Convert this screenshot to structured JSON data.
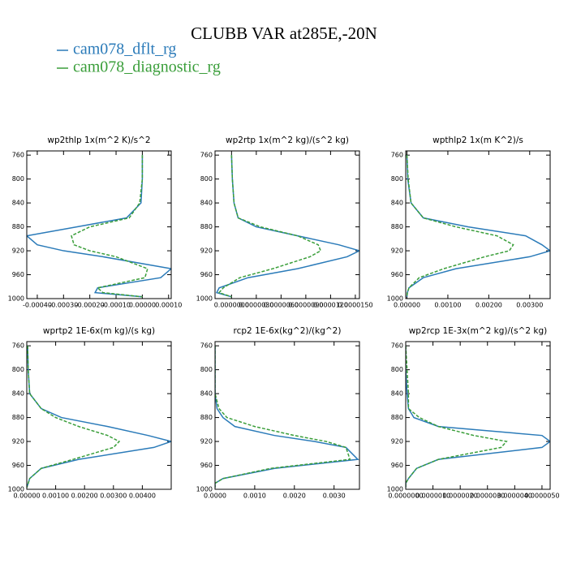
{
  "title": "CLUBB VAR at285E,-20N",
  "chart_data": [
    {
      "type": "line",
      "title": "wp2thlp  1x(m^2 K)/s^2",
      "y": [
        760,
        800,
        840,
        865,
        880,
        895,
        910,
        920,
        930,
        950,
        965,
        982,
        990,
        997
      ],
      "ylim": [
        1000,
        753
      ],
      "yticks": [
        760,
        800,
        840,
        880,
        920,
        960,
        1000
      ],
      "xlim": [
        -0.00044,
        0.00011
      ],
      "xticks": [
        {
          "value": -0.0004,
          "label": "-0.00040"
        },
        {
          "value": -0.0003,
          "label": "-0.00030"
        },
        {
          "value": -0.0002,
          "label": "-0.00020"
        },
        {
          "value": -0.0001,
          "label": "-0.00010"
        },
        {
          "value": 0,
          "label": "0.00000"
        },
        {
          "value": 0.0001,
          "label": "0.00010"
        }
      ],
      "series": [
        {
          "name": "cam078_dflt_rg",
          "color": "#2b7bb9",
          "dashed": false,
          "values": [
            0,
            0,
            -5e-06,
            -6e-05,
            -0.00025,
            -0.00044,
            -0.0004,
            -0.0003,
            -0.00015,
            0.00011,
            7e-05,
            -0.00017,
            -0.00018,
            0
          ]
        },
        {
          "name": "cam078_diagnostic_rg",
          "color": "#3a9e3a",
          "dashed": true,
          "values": [
            0,
            0,
            -1e-05,
            -5e-05,
            -0.0002,
            -0.00027,
            -0.00026,
            -0.0002,
            -0.0001,
            2e-05,
            1e-05,
            -0.00017,
            -0.00015,
            0
          ]
        }
      ]
    },
    {
      "type": "line",
      "title": "wp2rtp  1x(m^2 kg)/(s^2 kg)",
      "y": [
        760,
        800,
        840,
        865,
        880,
        895,
        910,
        920,
        930,
        950,
        965,
        982,
        990,
        997
      ],
      "ylim": [
        1000,
        753
      ],
      "yticks": [
        760,
        800,
        840,
        880,
        920,
        960,
        1000
      ],
      "xlim": [
        -2e-06,
        1.55e-05
      ],
      "xticks": [
        {
          "value": 0,
          "label": "0.0000000"
        },
        {
          "value": 3e-06,
          "label": "0.0000030"
        },
        {
          "value": 6e-06,
          "label": "0.0000060"
        },
        {
          "value": 9e-06,
          "label": "0.0000090"
        },
        {
          "value": 1.2e-05,
          "label": "0.0000120"
        },
        {
          "value": 1.5e-05,
          "label": "0.0000150"
        }
      ],
      "series": [
        {
          "color": "#2b7bb9",
          "dashed": false,
          "values": [
            0,
            1e-07,
            3e-07,
            8e-07,
            3e-06,
            8e-06,
            1.3e-05,
            1.55e-05,
            1.4e-05,
            8e-06,
            2e-06,
            -1.5e-06,
            -1.8e-06,
            0
          ]
        },
        {
          "color": "#3a9e3a",
          "dashed": true,
          "values": [
            0,
            1e-07,
            3e-07,
            8e-07,
            3.5e-06,
            8e-06,
            1.05e-05,
            1.08e-05,
            9.5e-06,
            5e-06,
            1e-06,
            -1e-06,
            -1.5e-06,
            0
          ]
        }
      ]
    },
    {
      "type": "line",
      "title": "wpthlp2  1x(m K^2)/s",
      "y": [
        760,
        800,
        840,
        865,
        880,
        895,
        910,
        920,
        930,
        950,
        965,
        982,
        990,
        997
      ],
      "ylim": [
        1000,
        753
      ],
      "yticks": [
        760,
        800,
        840,
        880,
        920,
        960,
        1000
      ],
      "xlim": [
        -3e-05,
        0.0035
      ],
      "xticks": [
        {
          "value": 0,
          "label": "0.00000"
        },
        {
          "value": 0.001,
          "label": "0.00100"
        },
        {
          "value": 0.002,
          "label": "0.00200"
        },
        {
          "value": 0.003,
          "label": "0.00300"
        }
      ],
      "series": [
        {
          "color": "#2b7bb9",
          "dashed": false,
          "values": [
            0,
            2e-05,
            0.0001,
            0.0004,
            0.0015,
            0.0029,
            0.0033,
            0.0035,
            0.003,
            0.0012,
            0.0004,
            5e-05,
            1e-05,
            0
          ]
        },
        {
          "color": "#3a9e3a",
          "dashed": true,
          "values": [
            0,
            3e-05,
            0.0001,
            0.0004,
            0.0012,
            0.0022,
            0.0026,
            0.0025,
            0.0019,
            0.0009,
            0.0003,
            5e-05,
            1e-05,
            0
          ]
        }
      ]
    },
    {
      "type": "line",
      "title": "wprtp2  1E-6x(m kg)/(s kg)",
      "y": [
        760,
        800,
        840,
        865,
        880,
        895,
        910,
        920,
        930,
        950,
        965,
        982,
        990,
        997
      ],
      "ylim": [
        1000,
        753
      ],
      "yticks": [
        760,
        800,
        840,
        880,
        920,
        960,
        1000
      ],
      "xlim": [
        0,
        0.005
      ],
      "xticks": [
        {
          "value": 0,
          "label": "0.00000"
        },
        {
          "value": 0.001,
          "label": "0.00100"
        },
        {
          "value": 0.002,
          "label": "0.00200"
        },
        {
          "value": 0.003,
          "label": "0.00300"
        },
        {
          "value": 0.004,
          "label": "0.00400"
        }
      ],
      "series": [
        {
          "color": "#2b7bb9",
          "dashed": false,
          "values": [
            3e-05,
            5e-05,
            0.0001,
            0.0005,
            0.0012,
            0.0028,
            0.0042,
            0.005,
            0.0044,
            0.0018,
            0.0005,
            0.0001,
            5e-05,
            0
          ]
        },
        {
          "color": "#3a9e3a",
          "dashed": true,
          "values": [
            3e-05,
            5e-05,
            0.0001,
            0.0005,
            0.001,
            0.0018,
            0.0028,
            0.0032,
            0.003,
            0.0016,
            0.0005,
            0.0001,
            5e-05,
            0
          ]
        }
      ]
    },
    {
      "type": "line",
      "title": "rcp2  1E-6x(kg^2)/(kg^2)",
      "y": [
        760,
        800,
        840,
        865,
        880,
        895,
        910,
        920,
        930,
        950,
        965,
        982,
        990,
        997
      ],
      "ylim": [
        1000,
        753
      ],
      "yticks": [
        760,
        800,
        840,
        880,
        920,
        960,
        1000
      ],
      "xlim": [
        0,
        0.00364
      ],
      "xticks": [
        {
          "value": 0,
          "label": "0.0000"
        },
        {
          "value": 0.001,
          "label": "0.0010"
        },
        {
          "value": 0.002,
          "label": "0.0020"
        },
        {
          "value": 0.003,
          "label": "0.0030"
        }
      ],
      "series": [
        {
          "color": "#2b7bb9",
          "dashed": false,
          "values": [
            0,
            0,
            0,
            5e-05,
            0.0002,
            0.0005,
            0.0015,
            0.0025,
            0.0033,
            0.0036,
            0.0015,
            0.0002,
            0,
            0
          ]
        },
        {
          "color": "#3a9e3a",
          "dashed": true,
          "values": [
            0,
            0,
            0,
            0.0001,
            0.0003,
            0.001,
            0.002,
            0.0028,
            0.0033,
            0.0034,
            0.0014,
            0.0002,
            0,
            0
          ]
        }
      ]
    },
    {
      "type": "line",
      "title": "wp2rcp  1E-3x(m^2 kg)/(s^2 kg)",
      "y": [
        760,
        800,
        840,
        865,
        880,
        895,
        910,
        920,
        930,
        950,
        965,
        982,
        990,
        997
      ],
      "ylim": [
        1000,
        753
      ],
      "yticks": [
        760,
        800,
        840,
        880,
        920,
        960,
        1000
      ],
      "xlim": [
        0,
        5.3e-06
      ],
      "xticks": [
        {
          "value": 0,
          "label": "0.0000000"
        },
        {
          "value": 1e-06,
          "label": "0.0000010"
        },
        {
          "value": 2e-06,
          "label": "0.0000020"
        },
        {
          "value": 3e-06,
          "label": "0.0000030"
        },
        {
          "value": 4e-06,
          "label": "0.0000040"
        },
        {
          "value": 5e-06,
          "label": "0.0000050"
        }
      ],
      "series": [
        {
          "color": "#2b7bb9",
          "dashed": false,
          "values": [
            0,
            0,
            5e-08,
            1e-07,
            3e-07,
            1.2e-06,
            5e-06,
            5.3e-06,
            5e-06,
            1.2e-06,
            4e-07,
            1e-07,
            0,
            0
          ]
        },
        {
          "color": "#3a9e3a",
          "dashed": true,
          "values": [
            0,
            5e-08,
            1e-07,
            1e-07,
            5e-07,
            1.2e-06,
            2.5e-06,
            3.7e-06,
            3.5e-06,
            1.2e-06,
            4e-07,
            1e-07,
            0,
            0
          ]
        }
      ]
    }
  ]
}
